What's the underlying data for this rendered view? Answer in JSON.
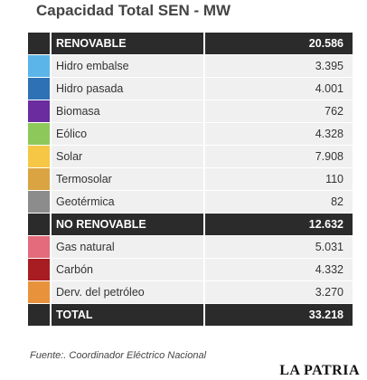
{
  "chart_data": {
    "type": "table",
    "title": "Capacidad Total SEN - MW",
    "rows": [
      {
        "label": "RENOVABLE",
        "value": "20.586",
        "kind": "section"
      },
      {
        "label": "Hidro embalse",
        "value": "3.395",
        "color": "#5bb5e8"
      },
      {
        "label": "Hidro pasada",
        "value": "4.001",
        "color": "#2e72b5"
      },
      {
        "label": "Biomasa",
        "value": "762",
        "color": "#6a2c9e"
      },
      {
        "label": "Eólico",
        "value": "4.328",
        "color": "#8dc85a"
      },
      {
        "label": "Solar",
        "value": "7.908",
        "color": "#f6c744"
      },
      {
        "label": "Termosolar",
        "value": "110",
        "color": "#d9a441"
      },
      {
        "label": "Geotérmica",
        "value": "82",
        "color": "#8c8c8c"
      },
      {
        "label": "NO RENOVABLE",
        "value": "12.632",
        "kind": "section"
      },
      {
        "label": "Gas natural",
        "value": "5.031",
        "color": "#e36b7b"
      },
      {
        "label": "Carbón",
        "value": "4.332",
        "color": "#a81d22"
      },
      {
        "label": "Derv. del petróleo",
        "value": "3.270",
        "color": "#e8923c"
      },
      {
        "label": "TOTAL",
        "value": "33.218",
        "kind": "section"
      }
    ],
    "source": "Fuente:. Coordinador Eléctrico Nacional"
  },
  "logo": "LA PATRIA"
}
